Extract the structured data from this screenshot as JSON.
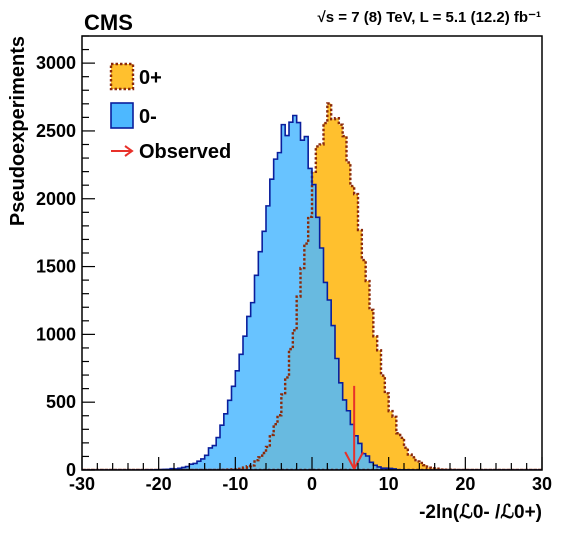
{
  "header": {
    "experiment": "CMS",
    "conditions": "√s = 7 (8) TeV, L = 5.1 (12.2) fb⁻¹"
  },
  "chart_data": {
    "type": "area",
    "title": "",
    "xlabel": "-2ln(ℒ0- /ℒ0+)",
    "ylabel": "Pseudoexperiments",
    "xlim": [
      -30,
      30
    ],
    "ylim": [
      0,
      3200
    ],
    "xticks": [
      -30,
      -20,
      -10,
      0,
      10,
      20,
      30
    ],
    "yticks": [
      0,
      500,
      1000,
      1500,
      2000,
      2500,
      3000
    ],
    "grid": false,
    "legend_position": "top-left",
    "bin_width": 0.5,
    "series": [
      {
        "name": "0+",
        "fill": "#ffc02e",
        "line": "#8b2a0a",
        "line_style": "dotted",
        "peak_x": 2.6,
        "peak_y": 2640,
        "width_left": 3.6,
        "width_right": 4.1,
        "x": [
          -10,
          -9,
          -8,
          -7,
          -6,
          -5,
          -4,
          -3,
          -2,
          -1,
          0,
          1,
          2,
          3,
          4,
          5,
          6,
          7,
          8,
          9,
          10,
          11,
          12,
          13,
          14,
          15,
          16,
          17,
          18,
          19,
          20,
          22,
          24
        ],
        "values": [
          8,
          15,
          30,
          60,
          100,
          170,
          300,
          500,
          780,
          1100,
          1500,
          1920,
          2470,
          2580,
          2400,
          2270,
          1900,
          1550,
          1250,
          920,
          640,
          440,
          300,
          190,
          120,
          75,
          45,
          25,
          15,
          8,
          4,
          2,
          1
        ]
      },
      {
        "name": "0-",
        "fill": "#4db8ff",
        "line": "#0a1e9c",
        "line_style": "solid",
        "peak_x": -2.3,
        "peak_y": 2600,
        "width_left": 4.6,
        "width_right": 3.7,
        "x": [
          -22,
          -20,
          -18,
          -17,
          -16,
          -15,
          -14,
          -13,
          -12,
          -11,
          -10,
          -9,
          -8,
          -7,
          -6,
          -5,
          -4,
          -3,
          -2,
          -1,
          0,
          1,
          2,
          3,
          4,
          5,
          6,
          7,
          8,
          9,
          10,
          12
        ],
        "values": [
          5,
          15,
          40,
          60,
          100,
          170,
          250,
          350,
          430,
          550,
          760,
          1000,
          1230,
          1520,
          1820,
          2100,
          2320,
          2470,
          2600,
          2340,
          1800,
          1250,
          800,
          460,
          240,
          110,
          45,
          15,
          5,
          3,
          2,
          1
        ]
      },
      {
        "name": "Observed",
        "color": "#e8312a",
        "type": "arrow",
        "x": 5.5,
        "arrow_top": 620,
        "arrow_bottom": 0
      }
    ]
  }
}
